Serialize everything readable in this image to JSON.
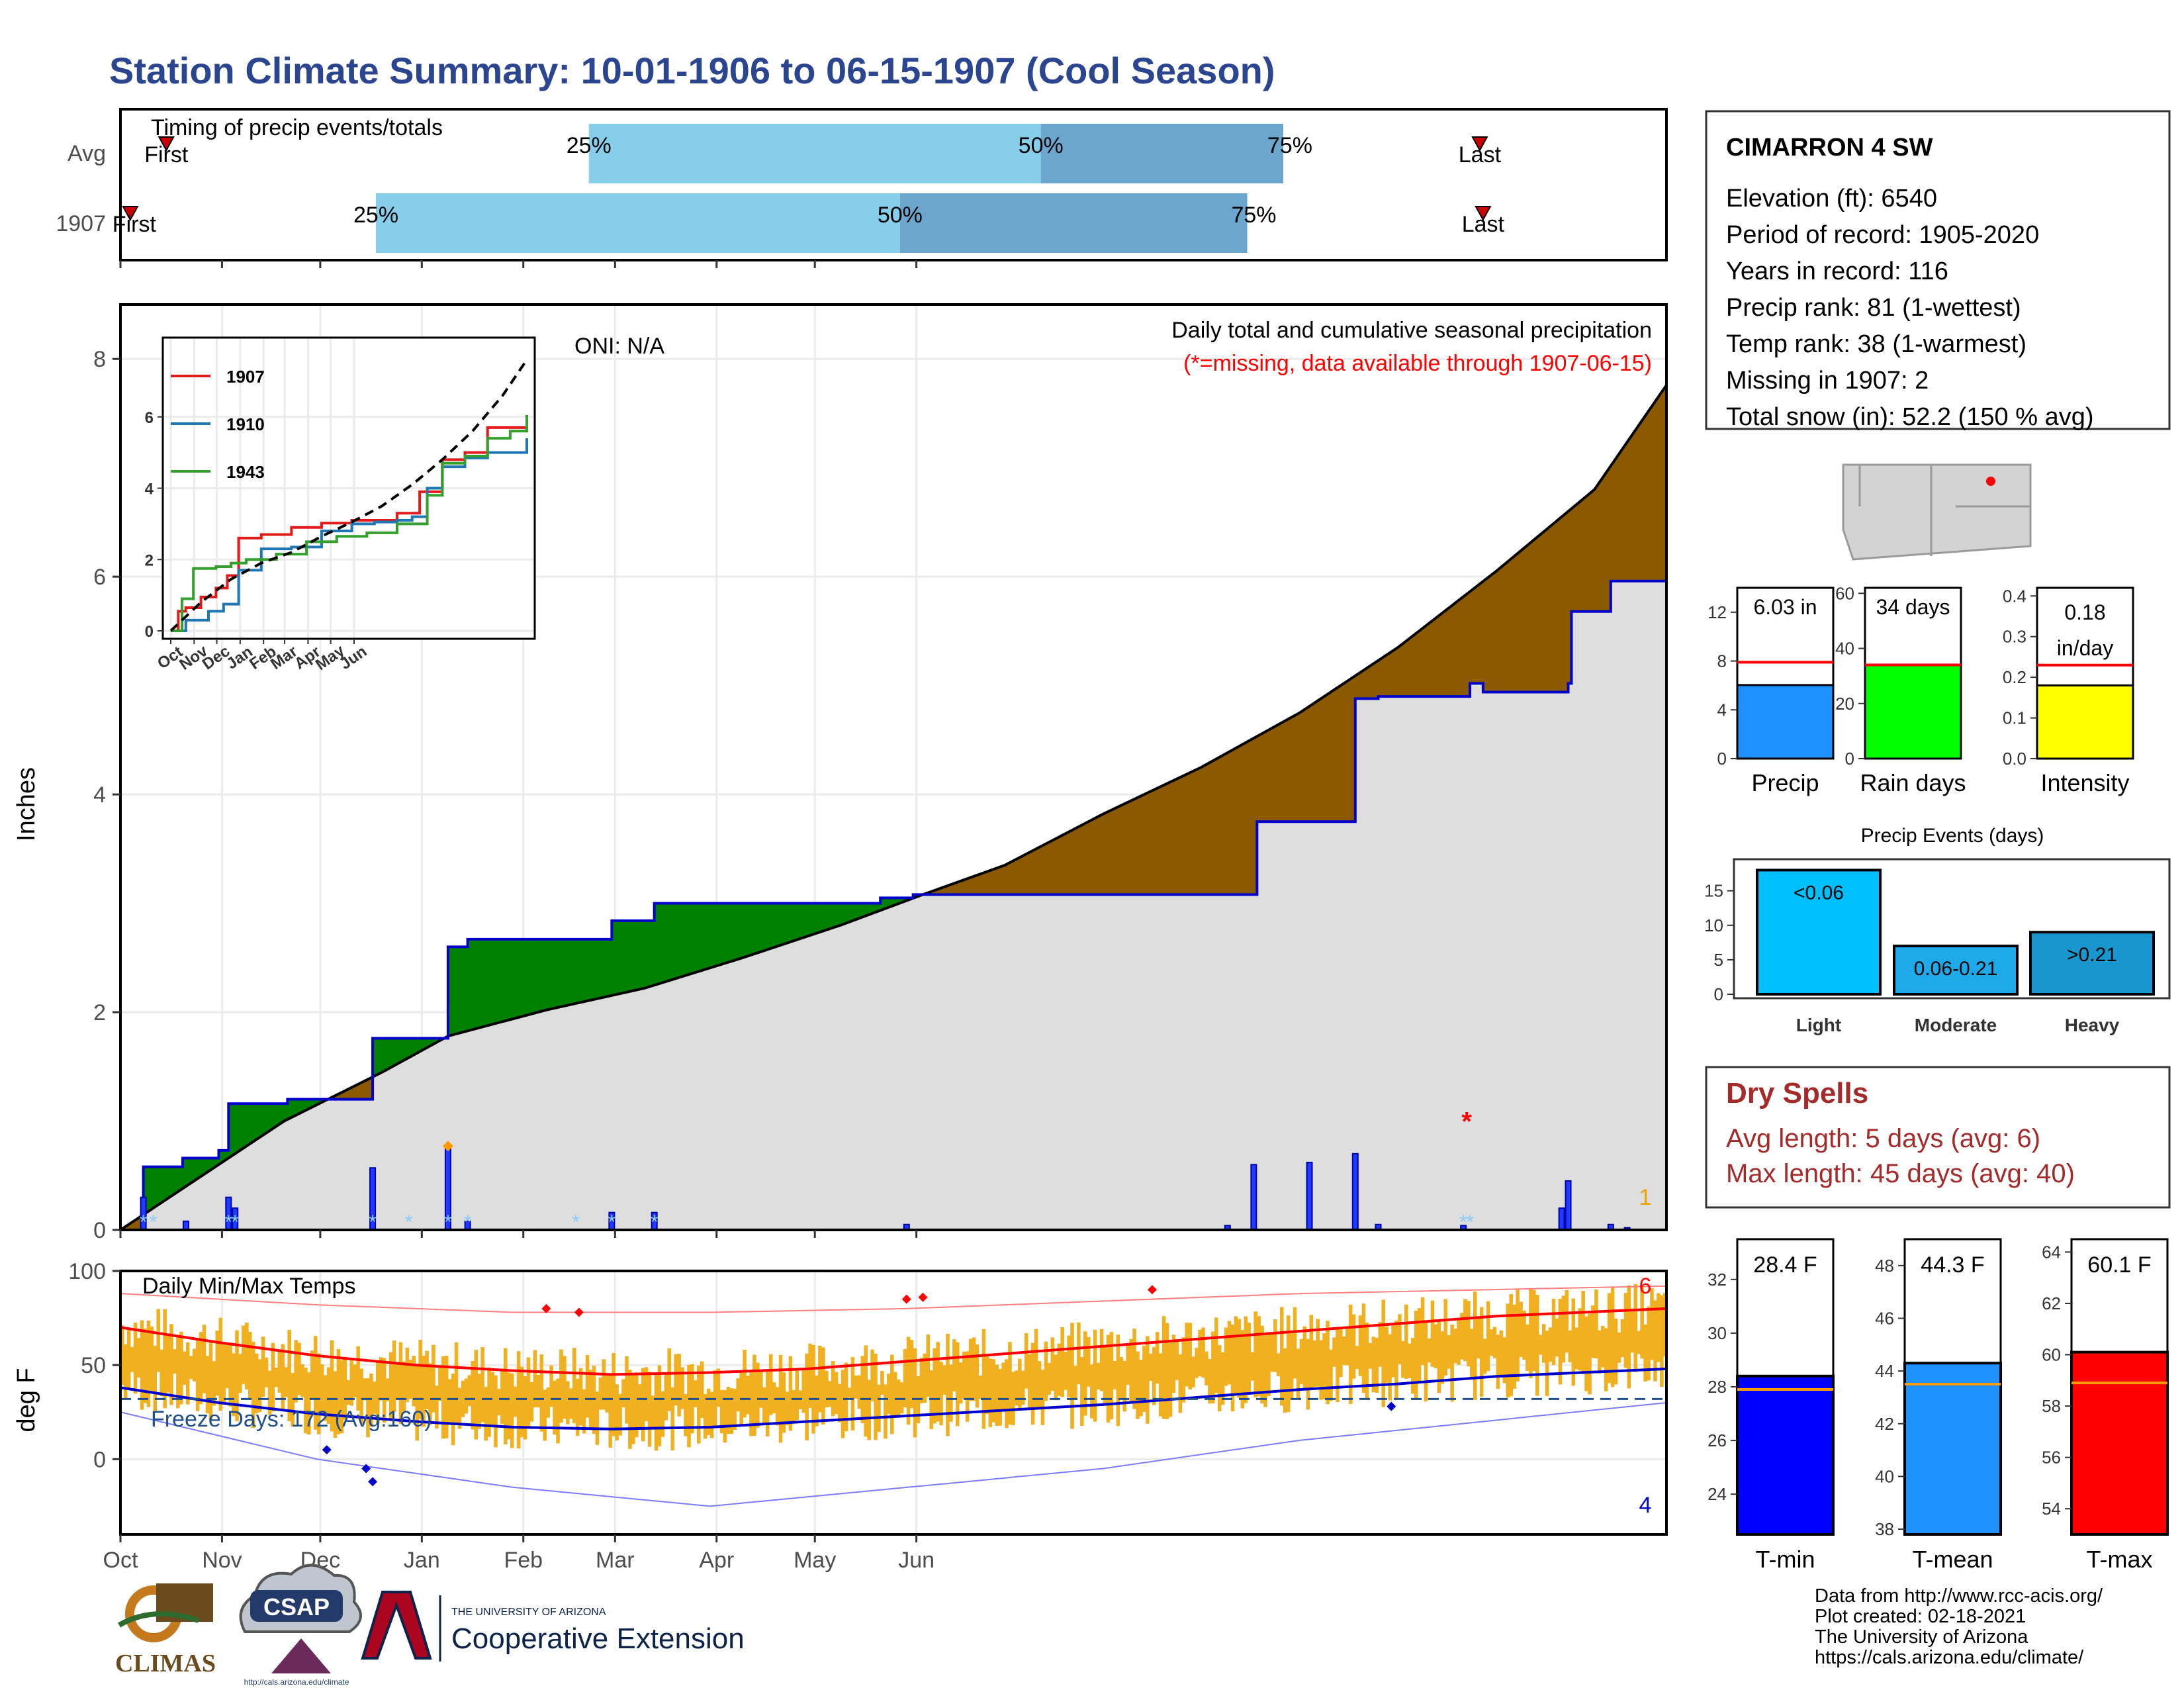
{
  "title": "Station Climate Summary: 10-01-1906 to 06-15-1907 (Cool Season)",
  "timing": {
    "label": "Timing of precip events/totals",
    "rows": [
      {
        "name": "Avg",
        "first_label": "First",
        "last_label": "Last",
        "q25": "25%",
        "q50": "50%",
        "q75": "75%"
      },
      {
        "name": "1907",
        "first_label": "First",
        "last_label": "Last",
        "q25": "25%",
        "q50": "50%",
        "q75": "75%"
      }
    ]
  },
  "station": {
    "name": "CIMARRON 4 SW",
    "lines": [
      "Elevation (ft): 6540",
      "Period of record: 1905-2020",
      "Years in record: 116",
      "Precip rank: 81 (1-wettest)",
      "Temp rank: 38 (1-warmest)",
      "Missing in 1907: 2",
      "Total snow (in): 52.2 (150 % avg)"
    ]
  },
  "precip_panel": {
    "ylabel": "Inches",
    "oni": "ONI: N/A",
    "caption": "Daily total and cumulative seasonal precipitation",
    "missing_note": "(*=missing, data available through 1907-06-15)",
    "corner_count": "1",
    "colors": {
      "above": "#008000",
      "below": "#8b5a00",
      "fill": "#dedede",
      "obs_line": "#0000cd",
      "daily_bar": "#1e3cff",
      "snow": "#87cefa"
    }
  },
  "inset": {
    "legend": [
      {
        "name": "1907",
        "color": "#e31a1c"
      },
      {
        "name": "1910",
        "color": "#1f78b4"
      },
      {
        "name": "1943",
        "color": "#33a02c"
      }
    ],
    "x_ticks": [
      "Oct",
      "Nov",
      "Dec",
      "Jan",
      "Feb",
      "Mar",
      "Apr",
      "May",
      "Jun"
    ],
    "y_ticks": [
      "0",
      "2",
      "4",
      "6"
    ]
  },
  "temp_panel": {
    "ylabel": "deg F",
    "label": "Daily Min/Max Temps",
    "freeze": "Freeze Days: 172 (Avg:160)",
    "count_max": "6",
    "count_min": "4",
    "colors": {
      "bars": "#f0b020",
      "max_line": "#ff0000",
      "min_line": "#0000cd",
      "freeze_line": "#1f4e8c"
    }
  },
  "mini_bars": [
    {
      "label": "Precip",
      "value_text": "6.03 in",
      "color": "#1e90ff",
      "y_ticks": [
        "0",
        "4",
        "8",
        "12"
      ]
    },
    {
      "label": "Rain days",
      "value_text": "34 days",
      "color": "#00ff00",
      "y_ticks": [
        "0",
        "20",
        "40",
        "60"
      ]
    },
    {
      "label": "Intensity",
      "value_text_1": "0.18",
      "value_text_2": "in/day",
      "color": "#ffff00",
      "y_ticks": [
        "0.0",
        "0.1",
        "0.2",
        "0.3",
        "0.4"
      ]
    }
  ],
  "events": {
    "title": "Precip Events (days)",
    "bars": [
      {
        "label": "Light",
        "bar_text": "<0.06",
        "color": "#00bfff"
      },
      {
        "label": "Moderate",
        "bar_text": "0.06-0.21",
        "color": "#1eaae8"
      },
      {
        "label": "Heavy",
        "bar_text": ">0.21",
        "color": "#1a96cf"
      }
    ],
    "y_ticks": [
      "0",
      "5",
      "10",
      "15"
    ]
  },
  "dry_spells": {
    "title": "Dry Spells",
    "avg": "Avg length: 5 days (avg: 6)",
    "max": "Max length: 45 days (avg: 40)"
  },
  "temp_bars": [
    {
      "label": "T-min",
      "value_text": "28.4 F",
      "color": "#0000ff",
      "y_ticks": [
        "24",
        "26",
        "28",
        "30",
        "32"
      ]
    },
    {
      "label": "T-mean",
      "value_text": "44.3 F",
      "color": "#1e90ff",
      "y_ticks": [
        "38",
        "40",
        "42",
        "44",
        "46",
        "48"
      ]
    },
    {
      "label": "T-max",
      "value_text": "60.1 F",
      "color": "#ff0000",
      "y_ticks": [
        "54",
        "56",
        "58",
        "60",
        "62",
        "64"
      ]
    }
  ],
  "footer": {
    "lines": [
      "Data from http://www.rcc-acis.org/",
      "Plot created: 02-18-2021",
      "The University of Arizona",
      "https://cals.arizona.edu/climate/"
    ],
    "logos": {
      "climas": "CLIMAS",
      "csap": "CSAP",
      "csap_url": "http://cals.arizona.edu/climate",
      "ua_small": "THE UNIVERSITY OF ARIZONA",
      "ua_big": "Cooperative Extension"
    }
  },
  "chart_data": [
    {
      "type": "bar",
      "name": "timing",
      "categories": [
        "Avg",
        "1907"
      ],
      "x_axis": "day of season (Oct 1 = 0)",
      "first": [
        14,
        3
      ],
      "q25": [
        143,
        78
      ],
      "q50": [
        281,
        238
      ],
      "q75": [
        355,
        344
      ],
      "last": [
        415,
        416
      ]
    },
    {
      "type": "area",
      "name": "cumulative_precip",
      "x_ticks": [
        "Oct",
        "Nov",
        "Dec",
        "Jan",
        "Feb",
        "Mar",
        "Apr",
        "May",
        "Jun"
      ],
      "ylim": [
        0,
        8.5
      ],
      "y_ticks": [
        0,
        2,
        4,
        6,
        8
      ],
      "observed_steps": [
        [
          0,
          0
        ],
        [
          7,
          0.58
        ],
        [
          19,
          0.66
        ],
        [
          30,
          0.73
        ],
        [
          33,
          1.16
        ],
        [
          51,
          1.2
        ],
        [
          77,
          1.76
        ],
        [
          100,
          2.6
        ],
        [
          106,
          2.67
        ],
        [
          150,
          2.84
        ],
        [
          163,
          3.0
        ],
        [
          232,
          3.05
        ],
        [
          242,
          3.08
        ],
        [
          336,
          3.08
        ],
        [
          347,
          3.75
        ],
        [
          377,
          4.88
        ],
        [
          384,
          4.9
        ],
        [
          416,
          4.94
        ],
        [
          412,
          5.02
        ],
        [
          442,
          5.02
        ],
        [
          443,
          5.68
        ],
        [
          455,
          5.96
        ],
        [
          472,
          6.03
        ]
      ],
      "average_curve": [
        [
          0,
          0
        ],
        [
          20,
          0.4
        ],
        [
          50,
          1.0
        ],
        [
          80,
          1.45
        ],
        [
          100,
          1.78
        ],
        [
          130,
          2.02
        ],
        [
          160,
          2.22
        ],
        [
          190,
          2.5
        ],
        [
          220,
          2.8
        ],
        [
          245,
          3.08
        ],
        [
          270,
          3.35
        ],
        [
          300,
          3.82
        ],
        [
          330,
          4.25
        ],
        [
          360,
          4.75
        ],
        [
          390,
          5.35
        ],
        [
          420,
          6.05
        ],
        [
          450,
          6.8
        ],
        [
          472,
          7.76
        ]
      ],
      "daily_precip": [
        [
          7,
          0.3
        ],
        [
          20,
          0.08
        ],
        [
          33,
          0.3
        ],
        [
          35,
          0.2
        ],
        [
          77,
          0.57
        ],
        [
          100,
          0.75
        ],
        [
          106,
          0.08
        ],
        [
          150,
          0.16
        ],
        [
          163,
          0.16
        ],
        [
          240,
          0.05
        ],
        [
          338,
          0.04
        ],
        [
          346,
          0.6
        ],
        [
          363,
          0.62
        ],
        [
          377,
          0.7
        ],
        [
          384,
          0.05
        ],
        [
          410,
          0.04
        ],
        [
          440,
          0.2
        ],
        [
          442,
          0.45
        ],
        [
          455,
          0.05
        ],
        [
          460,
          0.02
        ]
      ],
      "missing": [
        [
          411,
          1.0
        ]
      ]
    },
    {
      "type": "line",
      "name": "inset_analogs",
      "series": [
        {
          "name": "1907",
          "points": [
            [
              0,
              0
            ],
            [
              10,
              0.55
            ],
            [
              20,
              0.65
            ],
            [
              40,
              0.95
            ],
            [
              60,
              1.2
            ],
            [
              75,
              1.55
            ],
            [
              90,
              2.6
            ],
            [
              120,
              2.7
            ],
            [
              160,
              2.9
            ],
            [
              200,
              3.02
            ],
            [
              240,
              3.1
            ],
            [
              280,
              3.1
            ],
            [
              300,
              3.3
            ],
            [
              330,
              3.9
            ],
            [
              360,
              4.8
            ],
            [
              390,
              5.0
            ],
            [
              420,
              5.7
            ],
            [
              472,
              6.03
            ]
          ]
        },
        {
          "name": "1910",
          "points": [
            [
              0,
              0
            ],
            [
              20,
              0.3
            ],
            [
              50,
              0.55
            ],
            [
              70,
              0.75
            ],
            [
              90,
              1.7
            ],
            [
              120,
              2.3
            ],
            [
              160,
              2.35
            ],
            [
              200,
              2.8
            ],
            [
              240,
              3.0
            ],
            [
              270,
              3.05
            ],
            [
              300,
              3.1
            ],
            [
              320,
              3.2
            ],
            [
              340,
              4.0
            ],
            [
              360,
              4.6
            ],
            [
              390,
              4.85
            ],
            [
              420,
              5.0
            ],
            [
              472,
              5.4
            ]
          ]
        },
        {
          "name": "1943",
          "points": [
            [
              0,
              0
            ],
            [
              15,
              0.9
            ],
            [
              30,
              1.75
            ],
            [
              60,
              1.8
            ],
            [
              80,
              1.9
            ],
            [
              100,
              2.0
            ],
            [
              140,
              2.15
            ],
            [
              180,
              2.5
            ],
            [
              220,
              2.65
            ],
            [
              260,
              2.75
            ],
            [
              300,
              3.0
            ],
            [
              340,
              3.8
            ],
            [
              360,
              4.7
            ],
            [
              390,
              4.9
            ],
            [
              420,
              5.4
            ],
            [
              450,
              5.6
            ],
            [
              472,
              6.05
            ]
          ]
        },
        {
          "name": "average",
          "points": [
            [
              0,
              0
            ],
            [
              40,
              0.8
            ],
            [
              80,
              1.45
            ],
            [
              120,
              1.9
            ],
            [
              160,
              2.2
            ],
            [
              200,
              2.65
            ],
            [
              240,
              3.05
            ],
            [
              280,
              3.5
            ],
            [
              320,
              4.1
            ],
            [
              360,
              4.8
            ],
            [
              400,
              5.6
            ],
            [
              440,
              6.6
            ],
            [
              472,
              7.6
            ]
          ]
        }
      ]
    },
    {
      "type": "line",
      "name": "daily_temps",
      "ylim": [
        -40,
        100
      ],
      "y_ticks": [
        0,
        50,
        100
      ],
      "freeze_threshold": 32,
      "normal_max": [
        [
          0,
          70
        ],
        [
          30,
          62
        ],
        [
          60,
          55
        ],
        [
          90,
          50
        ],
        [
          120,
          47
        ],
        [
          150,
          45
        ],
        [
          180,
          46
        ],
        [
          210,
          48
        ],
        [
          240,
          52
        ],
        [
          270,
          56
        ],
        [
          300,
          60
        ],
        [
          330,
          64
        ],
        [
          360,
          68
        ],
        [
          390,
          72
        ],
        [
          420,
          76
        ],
        [
          472,
          80
        ]
      ],
      "normal_min": [
        [
          0,
          38
        ],
        [
          30,
          30
        ],
        [
          60,
          24
        ],
        [
          90,
          20
        ],
        [
          120,
          17
        ],
        [
          150,
          16
        ],
        [
          180,
          17
        ],
        [
          210,
          20
        ],
        [
          240,
          23
        ],
        [
          270,
          26
        ],
        [
          300,
          29
        ],
        [
          330,
          33
        ],
        [
          360,
          37
        ],
        [
          390,
          40
        ],
        [
          420,
          44
        ],
        [
          472,
          48
        ]
      ],
      "record_max": [
        [
          0,
          88
        ],
        [
          60,
          82
        ],
        [
          120,
          78
        ],
        [
          180,
          78
        ],
        [
          240,
          80
        ],
        [
          300,
          84
        ],
        [
          360,
          88
        ],
        [
          472,
          92
        ]
      ],
      "record_min": [
        [
          0,
          25
        ],
        [
          60,
          0
        ],
        [
          120,
          -15
        ],
        [
          180,
          -25
        ],
        [
          240,
          -15
        ],
        [
          300,
          -5
        ],
        [
          360,
          10
        ],
        [
          472,
          30
        ]
      ]
    },
    {
      "type": "bar",
      "name": "season_totals",
      "categories": [
        "Precip",
        "Rain days",
        "Intensity"
      ],
      "values": [
        6.03,
        34,
        0.18
      ],
      "averages": [
        7.9,
        34,
        0.23
      ],
      "ylims": [
        [
          0,
          14
        ],
        [
          0,
          62
        ],
        [
          0,
          0.42
        ]
      ]
    },
    {
      "type": "bar",
      "name": "precip_events",
      "categories": [
        "Light",
        "Moderate",
        "Heavy"
      ],
      "values": [
        18,
        7,
        9
      ],
      "ylim": [
        0,
        19
      ]
    },
    {
      "type": "bar",
      "name": "season_temps",
      "categories": [
        "T-min",
        "T-mean",
        "T-max"
      ],
      "values": [
        28.4,
        44.3,
        60.1
      ],
      "averages": [
        27.9,
        43.5,
        58.9
      ],
      "ylims": [
        [
          22.5,
          33.5
        ],
        [
          37.8,
          49
        ],
        [
          53,
          64.5
        ]
      ]
    }
  ]
}
